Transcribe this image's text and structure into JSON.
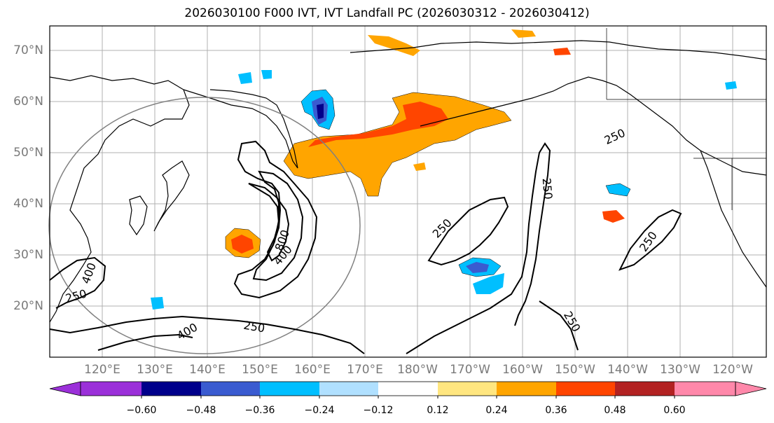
{
  "title": "2026030100 F000 IVT, IVT Landfall PC (2026030312 - 2026030412)",
  "lat_labels": [
    "70°N",
    "60°N",
    "50°N",
    "40°N",
    "30°N",
    "20°N"
  ],
  "lon_labels": [
    "120°E",
    "130°E",
    "140°E",
    "150°E",
    "160°E",
    "170°E",
    "180°W",
    "170°W",
    "160°W",
    "150°W",
    "140°W",
    "130°W",
    "120°W"
  ],
  "colorbar": {
    "ticks": [
      "−0.60",
      "−0.48",
      "−0.36",
      "−0.24",
      "−0.12",
      "0.12",
      "0.24",
      "0.36",
      "0.48",
      "0.60"
    ],
    "colors": [
      "#9b30d9",
      "#00008b",
      "#3a5bd0",
      "#00bfff",
      "#b0e0ff",
      "#ffffff",
      "#ffe680",
      "#ffa500",
      "#ff4500",
      "#b22222",
      "#ff88aa"
    ]
  },
  "contour_labels": [
    "250",
    "250",
    "400",
    "250",
    "400",
    "800",
    "250",
    "250",
    "250",
    "250",
    "400"
  ],
  "colors": {
    "contour": "#000000",
    "grid": "#b0b0b0",
    "circle": "#808080",
    "positive_mid": "#ffa500",
    "positive_high": "#ff4500",
    "negative_mid": "#00bfff",
    "negative_high": "#3a5bd0"
  }
}
